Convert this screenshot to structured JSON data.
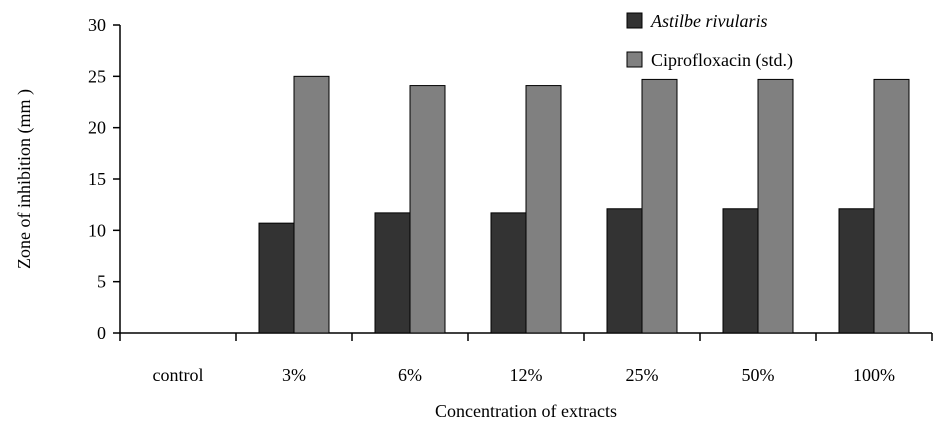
{
  "chart_data": {
    "type": "bar",
    "categories": [
      "control",
      "3%",
      "6%",
      "12%",
      "25%",
      "50%",
      "100%"
    ],
    "series": [
      {
        "name": "Astilbe rivularis",
        "values": [
          0,
          10.7,
          11.7,
          11.7,
          12.1,
          12.1,
          12.1
        ],
        "color": "#333333"
      },
      {
        "name": "Ciprofloxacin (std.)",
        "values": [
          0,
          25,
          24.1,
          24.1,
          24.7,
          24.7,
          24.7
        ],
        "color": "#808080"
      }
    ],
    "xlabel": "Concentration of extracts",
    "ylabel": "Zone of inhibition (mm )",
    "ylim": [
      0,
      30
    ],
    "yticks": [
      0,
      5,
      10,
      15,
      20,
      25,
      30
    ],
    "grid": false,
    "legend_position": "top-right"
  }
}
